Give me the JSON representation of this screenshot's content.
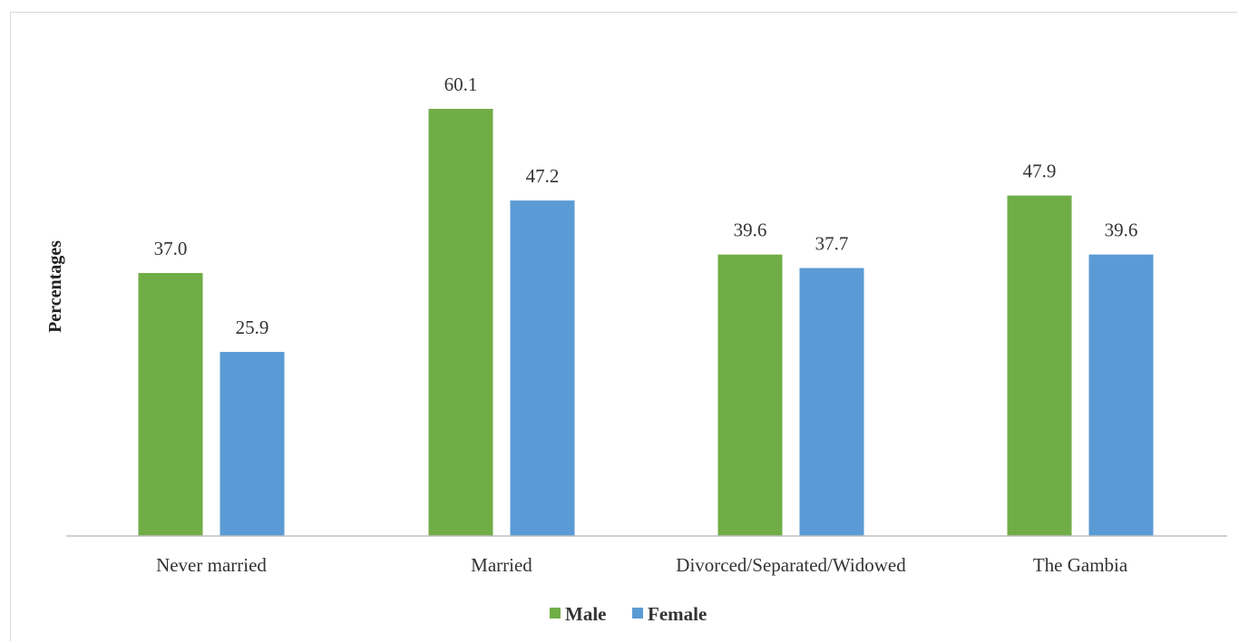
{
  "chart_data": {
    "type": "bar",
    "title": "",
    "xlabel": "",
    "ylabel": "Percentages",
    "categories": [
      "Never married",
      "Married",
      "Divorced/Separated/Widowed",
      "The Gambia"
    ],
    "series": [
      {
        "name": "Male",
        "values": [
          37.0,
          60.1,
          39.6,
          47.9
        ],
        "color": "#70ad47"
      },
      {
        "name": "Female",
        "values": [
          25.9,
          47.2,
          37.7,
          39.6
        ],
        "color": "#5b9bd5"
      }
    ],
    "value_labels": [
      [
        "37.0",
        "60.1",
        "39.6",
        "47.9"
      ],
      [
        "25.9",
        "47.2",
        "37.7",
        "39.6"
      ]
    ],
    "ylim": [
      0,
      66
    ],
    "grid": false,
    "legend_position": "bottom"
  }
}
